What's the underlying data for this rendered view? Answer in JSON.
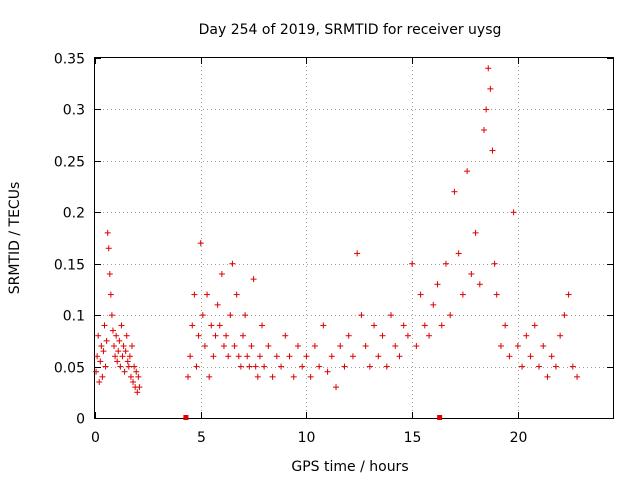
{
  "chart_data": {
    "type": "scatter",
    "title": "Day 254 of 2019, SRMTID for receiver uysg",
    "xlabel": "GPS time / hours",
    "ylabel": "SRMTID / TECUs",
    "xlim": [
      0,
      24.5
    ],
    "ylim": [
      0,
      0.35
    ],
    "xticks": [
      0,
      5,
      10,
      15,
      20
    ],
    "xtick_labels": [
      "0",
      "5",
      "10",
      "15",
      "20"
    ],
    "yticks": [
      0,
      0.05,
      0.1,
      0.15,
      0.2,
      0.25,
      0.3,
      0.35
    ],
    "ytick_labels": [
      "0",
      "0.05",
      "0.1",
      "0.15",
      "0.2",
      "0.25",
      "0.3",
      "0.35"
    ],
    "grid": true,
    "marker": "+",
    "color": "#dd0000",
    "gap_markers": [
      4.3,
      16.3
    ],
    "series": [
      {
        "name": "SRMTID",
        "points": [
          [
            0.05,
            0.045
          ],
          [
            0.1,
            0.06
          ],
          [
            0.15,
            0.08
          ],
          [
            0.2,
            0.035
          ],
          [
            0.25,
            0.055
          ],
          [
            0.3,
            0.07
          ],
          [
            0.35,
            0.04
          ],
          [
            0.4,
            0.065
          ],
          [
            0.45,
            0.09
          ],
          [
            0.5,
            0.05
          ],
          [
            0.55,
            0.075
          ],
          [
            0.6,
            0.18
          ],
          [
            0.65,
            0.165
          ],
          [
            0.7,
            0.14
          ],
          [
            0.75,
            0.12
          ],
          [
            0.8,
            0.1
          ],
          [
            0.85,
            0.085
          ],
          [
            0.9,
            0.07
          ],
          [
            0.95,
            0.06
          ],
          [
            1.0,
            0.08
          ],
          [
            1.05,
            0.055
          ],
          [
            1.1,
            0.065
          ],
          [
            1.15,
            0.075
          ],
          [
            1.2,
            0.05
          ],
          [
            1.25,
            0.09
          ],
          [
            1.3,
            0.06
          ],
          [
            1.35,
            0.07
          ],
          [
            1.4,
            0.045
          ],
          [
            1.45,
            0.065
          ],
          [
            1.5,
            0.08
          ],
          [
            1.55,
            0.055
          ],
          [
            1.6,
            0.05
          ],
          [
            1.65,
            0.06
          ],
          [
            1.7,
            0.04
          ],
          [
            1.75,
            0.07
          ],
          [
            1.8,
            0.035
          ],
          [
            1.85,
            0.05
          ],
          [
            1.9,
            0.03
          ],
          [
            1.95,
            0.045
          ],
          [
            2.0,
            0.025
          ],
          [
            2.05,
            0.04
          ],
          [
            2.1,
            0.03
          ],
          [
            4.4,
            0.04
          ],
          [
            4.5,
            0.06
          ],
          [
            4.6,
            0.09
          ],
          [
            4.7,
            0.12
          ],
          [
            4.8,
            0.05
          ],
          [
            4.9,
            0.08
          ],
          [
            5.0,
            0.17
          ],
          [
            5.1,
            0.1
          ],
          [
            5.2,
            0.07
          ],
          [
            5.3,
            0.12
          ],
          [
            5.4,
            0.04
          ],
          [
            5.5,
            0.09
          ],
          [
            5.6,
            0.06
          ],
          [
            5.7,
            0.08
          ],
          [
            5.8,
            0.11
          ],
          [
            5.9,
            0.09
          ],
          [
            6.0,
            0.14
          ],
          [
            6.1,
            0.07
          ],
          [
            6.2,
            0.08
          ],
          [
            6.3,
            0.06
          ],
          [
            6.4,
            0.1
          ],
          [
            6.5,
            0.15
          ],
          [
            6.6,
            0.07
          ],
          [
            6.7,
            0.12
          ],
          [
            6.8,
            0.06
          ],
          [
            6.9,
            0.05
          ],
          [
            7.0,
            0.08
          ],
          [
            7.1,
            0.1
          ],
          [
            7.2,
            0.06
          ],
          [
            7.3,
            0.05
          ],
          [
            7.4,
            0.07
          ],
          [
            7.5,
            0.135
          ],
          [
            7.6,
            0.05
          ],
          [
            7.7,
            0.04
          ],
          [
            7.8,
            0.06
          ],
          [
            7.9,
            0.09
          ],
          [
            8.0,
            0.05
          ],
          [
            8.2,
            0.07
          ],
          [
            8.4,
            0.04
          ],
          [
            8.6,
            0.06
          ],
          [
            8.8,
            0.05
          ],
          [
            9.0,
            0.08
          ],
          [
            9.2,
            0.06
          ],
          [
            9.4,
            0.04
          ],
          [
            9.6,
            0.07
          ],
          [
            9.8,
            0.05
          ],
          [
            10.0,
            0.06
          ],
          [
            10.2,
            0.04
          ],
          [
            10.4,
            0.07
          ],
          [
            10.6,
            0.05
          ],
          [
            10.8,
            0.09
          ],
          [
            11.0,
            0.045
          ],
          [
            11.2,
            0.06
          ],
          [
            11.4,
            0.03
          ],
          [
            11.6,
            0.07
          ],
          [
            11.8,
            0.05
          ],
          [
            12.0,
            0.08
          ],
          [
            12.2,
            0.06
          ],
          [
            12.4,
            0.16
          ],
          [
            12.6,
            0.1
          ],
          [
            12.8,
            0.07
          ],
          [
            13.0,
            0.05
          ],
          [
            13.2,
            0.09
          ],
          [
            13.4,
            0.06
          ],
          [
            13.6,
            0.08
          ],
          [
            13.8,
            0.05
          ],
          [
            14.0,
            0.1
          ],
          [
            14.2,
            0.07
          ],
          [
            14.4,
            0.06
          ],
          [
            14.6,
            0.09
          ],
          [
            14.8,
            0.08
          ],
          [
            15.0,
            0.15
          ],
          [
            15.2,
            0.07
          ],
          [
            15.4,
            0.12
          ],
          [
            15.6,
            0.09
          ],
          [
            15.8,
            0.08
          ],
          [
            16.0,
            0.11
          ],
          [
            16.2,
            0.13
          ],
          [
            16.4,
            0.09
          ],
          [
            16.6,
            0.15
          ],
          [
            16.8,
            0.1
          ],
          [
            17.0,
            0.22
          ],
          [
            17.2,
            0.16
          ],
          [
            17.4,
            0.12
          ],
          [
            17.6,
            0.24
          ],
          [
            17.8,
            0.14
          ],
          [
            18.0,
            0.18
          ],
          [
            18.2,
            0.13
          ],
          [
            18.4,
            0.28
          ],
          [
            18.5,
            0.3
          ],
          [
            18.6,
            0.34
          ],
          [
            18.7,
            0.32
          ],
          [
            18.8,
            0.26
          ],
          [
            18.9,
            0.15
          ],
          [
            19.0,
            0.12
          ],
          [
            19.2,
            0.07
          ],
          [
            19.4,
            0.09
          ],
          [
            19.6,
            0.06
          ],
          [
            19.8,
            0.2
          ],
          [
            20.0,
            0.07
          ],
          [
            20.2,
            0.05
          ],
          [
            20.4,
            0.08
          ],
          [
            20.6,
            0.06
          ],
          [
            20.8,
            0.09
          ],
          [
            21.0,
            0.05
          ],
          [
            21.2,
            0.07
          ],
          [
            21.4,
            0.04
          ],
          [
            21.6,
            0.06
          ],
          [
            21.8,
            0.05
          ],
          [
            22.0,
            0.08
          ],
          [
            22.2,
            0.1
          ],
          [
            22.4,
            0.12
          ],
          [
            22.6,
            0.05
          ],
          [
            22.8,
            0.04
          ]
        ]
      }
    ]
  }
}
